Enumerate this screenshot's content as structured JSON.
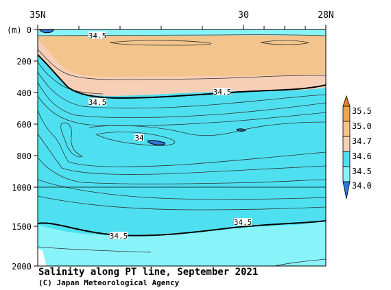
{
  "chart_data": {
    "type": "contour",
    "title": "Salinity along PT line, September 2021",
    "credit": "(C) Japan Meteorological Agency",
    "xaxis": {
      "ticks": [
        {
          "label": "35N",
          "lat": 35
        },
        {
          "label": "30",
          "lat": 30
        },
        {
          "label": "28N",
          "lat": 28
        }
      ],
      "range": [
        35,
        28
      ]
    },
    "yaxis": {
      "unit_label": "(m)",
      "ticks": [
        "0",
        "200",
        "400",
        "600",
        "800",
        "1000",
        "1500",
        "2000"
      ],
      "tick_values": [
        0,
        200,
        400,
        600,
        800,
        1000,
        1500,
        2000
      ],
      "range": [
        0,
        2000
      ],
      "scale": "linear 0-1000, compressed 1000-2000"
    },
    "colorbar": {
      "levels": [
        "35.5",
        "35.0",
        "34.7",
        "34.6",
        "34.5",
        "34.0"
      ],
      "colors": {
        "above_35_5": "#e0821e",
        "35_0_to_35_5": "#eba555",
        "34_7_to_35_0": "#f3c48c",
        "34_6_to_34_7": "#f7cfb6",
        "34_5_to_34_6": "#4ee0f0",
        "34_0_to_34_5": "#88f4fa",
        "below_34_0": "#2c78d8"
      }
    },
    "contour_labels": [
      "34.5",
      "34.5",
      "34.5",
      "34",
      "34.5",
      "34.5"
    ],
    "reference_line_depth": 1000
  }
}
